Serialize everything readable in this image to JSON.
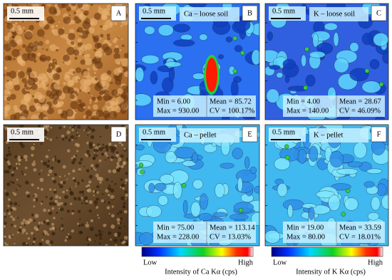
{
  "panels": [
    {
      "letter": "A",
      "scale": "0.5 mm"
    },
    {
      "letter": "B",
      "scale": "0.5 mm",
      "title": "Ca – loose soil",
      "min": "Min = 6.00",
      "max": "Max = 930.00",
      "mean": "Mean = 85.72",
      "cv": "CV = 100.17%"
    },
    {
      "letter": "C",
      "scale": "0.5 mm",
      "title": "K – loose soil",
      "min": "Min = 4.00",
      "max": "Max = 140.00",
      "mean": "Mean = 28.67",
      "cv": "CV = 46.09%"
    },
    {
      "letter": "D",
      "scale": "0.5 mm"
    },
    {
      "letter": "E",
      "scale": "0.5 mm",
      "title": "Ca – pellet",
      "min": "Min = 75.00",
      "max": "Max = 228.00",
      "mean": "Mean = 113.14",
      "cv": "CV = 13.03%"
    },
    {
      "letter": "F",
      "scale": "0.5 mm",
      "title": "K – pellet",
      "min": "Min = 19.00",
      "max": "Max = 80.00",
      "mean": "Mean = 33.59",
      "cv": "CV = 18.01%"
    }
  ],
  "colorbars": [
    {
      "low": "Low",
      "high": "High",
      "caption": "Intensity of Ca Kα (cps)"
    },
    {
      "low": "Low",
      "high": "High",
      "caption": "Intensity of K Kα (cps)"
    }
  ]
}
